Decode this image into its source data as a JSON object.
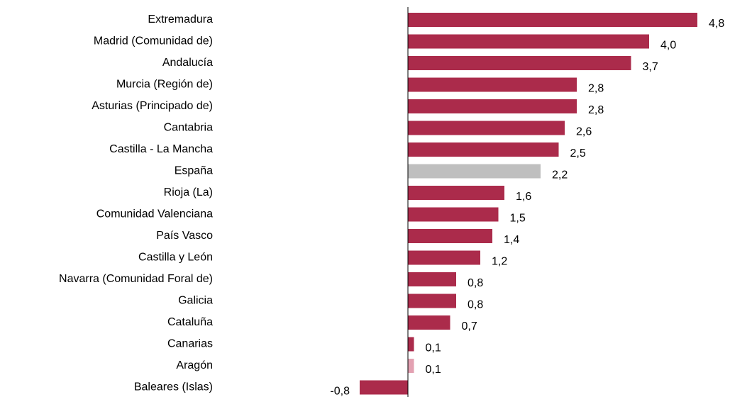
{
  "chart_data": {
    "type": "bar",
    "orientation": "horizontal",
    "categories": [
      "Extremadura",
      "Madrid (Comunidad de)",
      "Andalucía",
      "Murcia (Región de)",
      "Asturias (Principado de)",
      "Cantabria",
      "Castilla - La Mancha",
      "España",
      "Rioja (La)",
      "Comunidad Valenciana",
      "País Vasco",
      "Castilla y León",
      "Navarra (Comunidad Foral de)",
      "Galicia",
      "Cataluña",
      "Canarias",
      "Aragón",
      "Baleares (Islas)"
    ],
    "values": [
      4.8,
      4.0,
      3.7,
      2.8,
      2.8,
      2.6,
      2.5,
      2.2,
      1.6,
      1.5,
      1.4,
      1.2,
      0.8,
      0.8,
      0.7,
      0.1,
      0.1,
      -0.8
    ],
    "value_labels": [
      "4,8",
      "4,0",
      "3,7",
      "2,8",
      "2,8",
      "2,6",
      "2,5",
      "2,2",
      "1,6",
      "1,5",
      "1,4",
      "1,2",
      "0,8",
      "0,8",
      "0,7",
      "0,1",
      "0,1",
      "-0,8"
    ],
    "colors": [
      "#ab2b4b",
      "#ab2b4b",
      "#ab2b4b",
      "#ab2b4b",
      "#ab2b4b",
      "#ab2b4b",
      "#ab2b4b",
      "#bfbfbf",
      "#ab2b4b",
      "#ab2b4b",
      "#ab2b4b",
      "#ab2b4b",
      "#ab2b4b",
      "#ab2b4b",
      "#ab2b4b",
      "#ab2b4b",
      "#e3a1b2",
      "#ab2b4b"
    ]
  }
}
